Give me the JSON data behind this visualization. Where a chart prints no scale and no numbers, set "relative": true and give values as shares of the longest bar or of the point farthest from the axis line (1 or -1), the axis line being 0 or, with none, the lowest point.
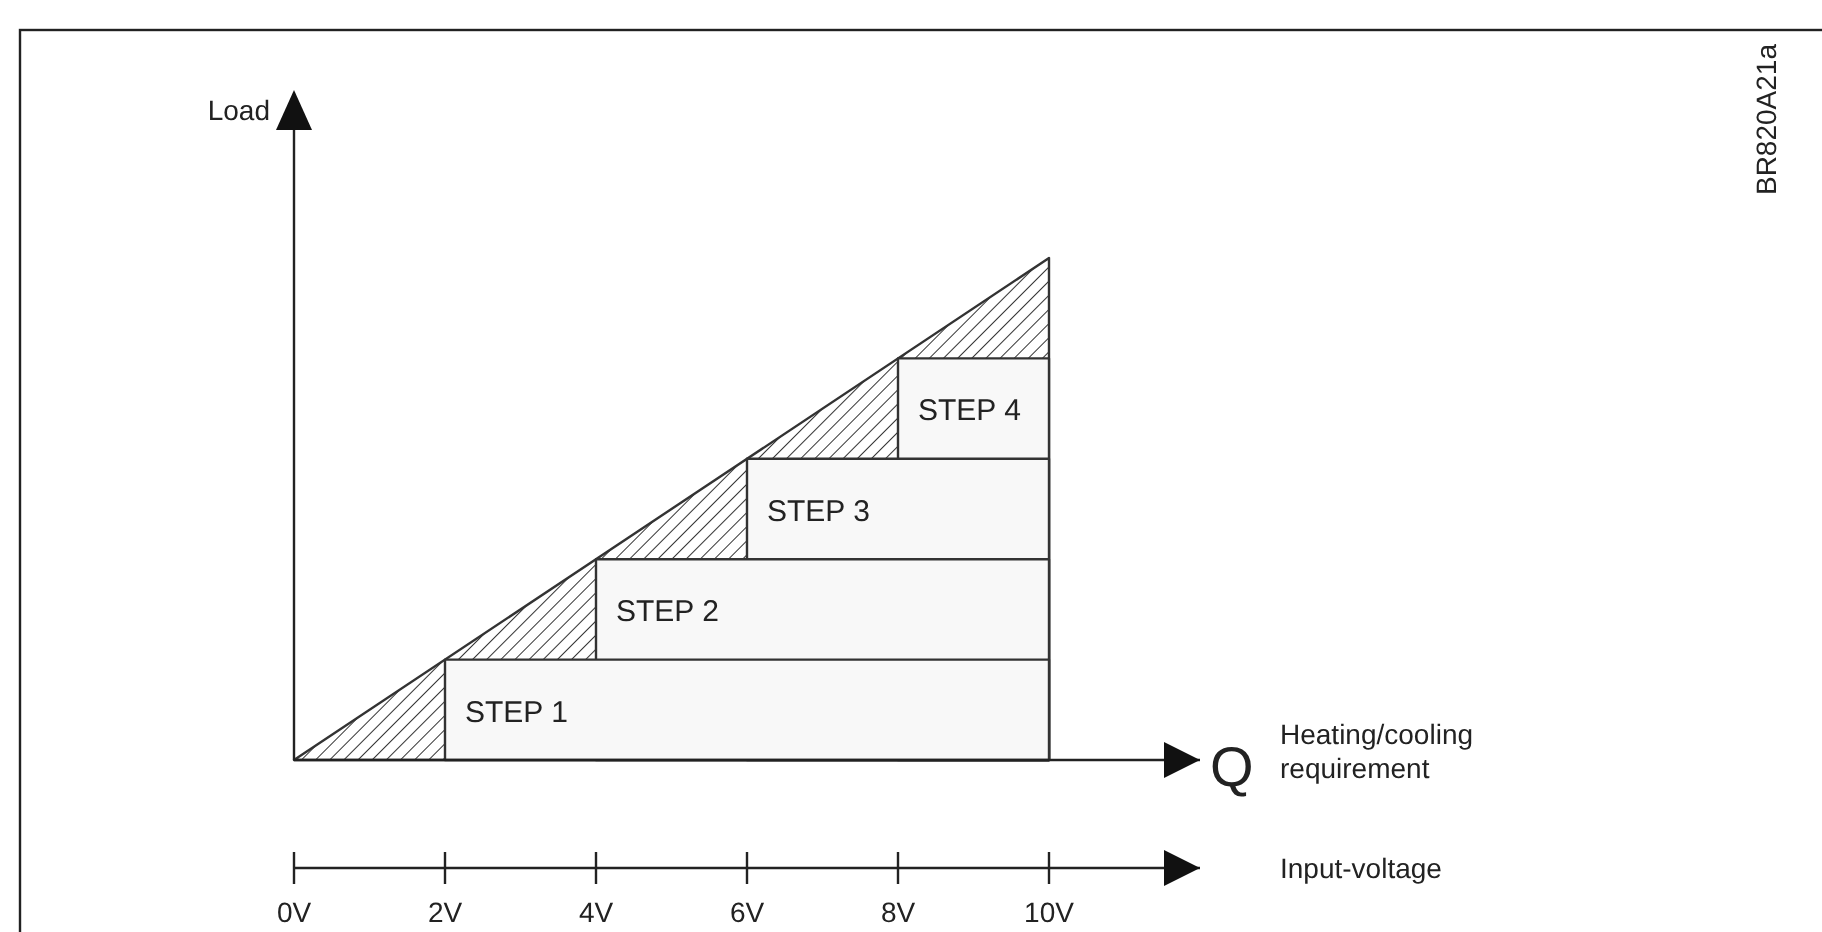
{
  "chart_data": {
    "type": "area",
    "relative": true,
    "ylabel": "Load",
    "xlabel": "Input-voltage",
    "xlim": [
      0,
      12
    ],
    "xticks": [
      {
        "value": 0,
        "label": "0V"
      },
      {
        "value": 2,
        "label": "2V"
      },
      {
        "value": 4,
        "label": "4V"
      },
      {
        "value": 6,
        "label": "6V"
      },
      {
        "value": 8,
        "label": "8V"
      },
      {
        "value": 10,
        "label": "10V"
      }
    ],
    "series": [
      {
        "color": "#333333",
        "x": [
          0,
          10
        ],
        "values": [
          0,
          1
        ]
      },
      {
        "name": "STEP 1",
        "color": "#f8f8f8",
        "x": [
          2,
          10
        ],
        "values": [
          0.2,
          0.2
        ]
      },
      {
        "name": "STEP 2",
        "color": "#f8f8f8",
        "x": [
          4,
          10
        ],
        "values": [
          0.4,
          0.4
        ]
      },
      {
        "name": "STEP 3",
        "color": "#f8f8f8",
        "x": [
          6,
          10
        ],
        "values": [
          0.6,
          0.6
        ]
      },
      {
        "name": "STEP 4",
        "color": "#f8f8f8",
        "x": [
          8,
          10
        ],
        "values": [
          0.8,
          0.8
        ]
      }
    ],
    "annotations": [
      "Q",
      "Heating/cooling requirement",
      "BR820A21a"
    ]
  }
}
